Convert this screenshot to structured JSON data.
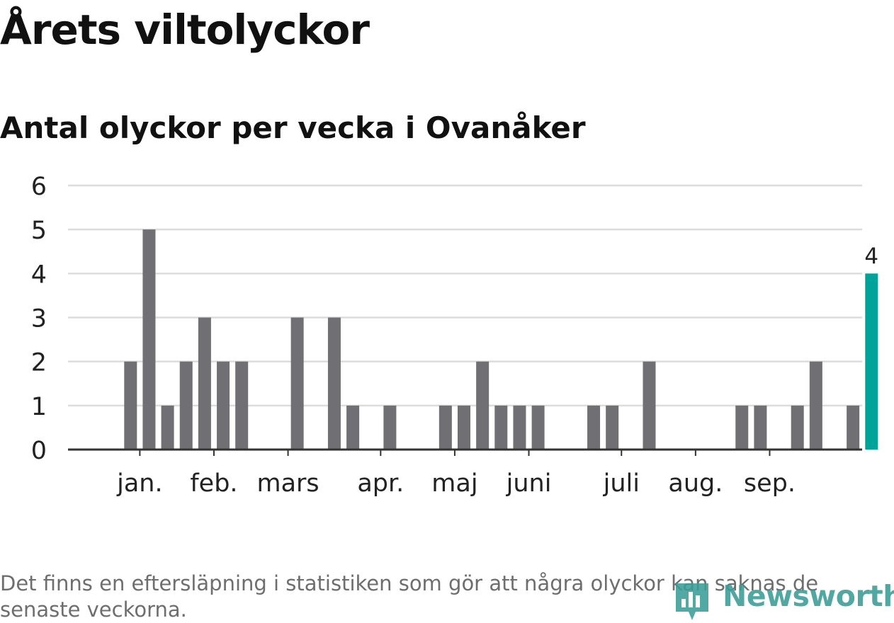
{
  "title": "Årets viltolyckor",
  "subtitle": "Antal olyckor per vecka i Ovanåker",
  "footnote": "Det finns en eftersläpning i statistiken som gör att några olyckor kan saknas de senaste veckorna.",
  "brand": {
    "name": "Newsworthy",
    "icon": "newsworthy-logo-icon"
  },
  "colors": {
    "bar": "#706f74",
    "highlight": "#00a39a",
    "grid": "#dcdcdc",
    "axis": "#333333",
    "text": "#222222"
  },
  "chart_data": {
    "type": "bar",
    "title": "Antal olyckor per vecka i Ovanåker",
    "xlabel": "",
    "ylabel": "",
    "ylim": [
      0,
      6
    ],
    "yticks": [
      0,
      1,
      2,
      3,
      4,
      5,
      6
    ],
    "grid": true,
    "x": [
      1,
      2,
      3,
      4,
      5,
      6,
      7,
      8,
      9,
      10,
      11,
      12,
      13,
      14,
      15,
      16,
      17,
      18,
      19,
      20,
      21,
      22,
      23,
      24,
      25,
      26,
      27,
      28,
      29,
      30,
      31,
      32,
      33,
      34,
      35,
      36,
      37,
      38,
      39,
      40,
      41,
      42,
      43
    ],
    "values": [
      0,
      0,
      2,
      5,
      1,
      2,
      3,
      2,
      2,
      0,
      0,
      3,
      0,
      3,
      1,
      0,
      1,
      0,
      0,
      1,
      1,
      2,
      1,
      1,
      1,
      0,
      0,
      1,
      1,
      0,
      2,
      0,
      0,
      0,
      0,
      1,
      1,
      0,
      1,
      2,
      0,
      1,
      4
    ],
    "highlight_index": 42,
    "highlight_label": "4",
    "month_ticks": [
      {
        "label": "jan.",
        "at": 2.5
      },
      {
        "label": "feb.",
        "at": 6.5
      },
      {
        "label": "mars",
        "at": 10.5
      },
      {
        "label": "apr.",
        "at": 15.5
      },
      {
        "label": "maj",
        "at": 19.5
      },
      {
        "label": "juni",
        "at": 23.5
      },
      {
        "label": "juli",
        "at": 28.5
      },
      {
        "label": "aug.",
        "at": 32.5
      },
      {
        "label": "sep.",
        "at": 36.5
      }
    ]
  }
}
